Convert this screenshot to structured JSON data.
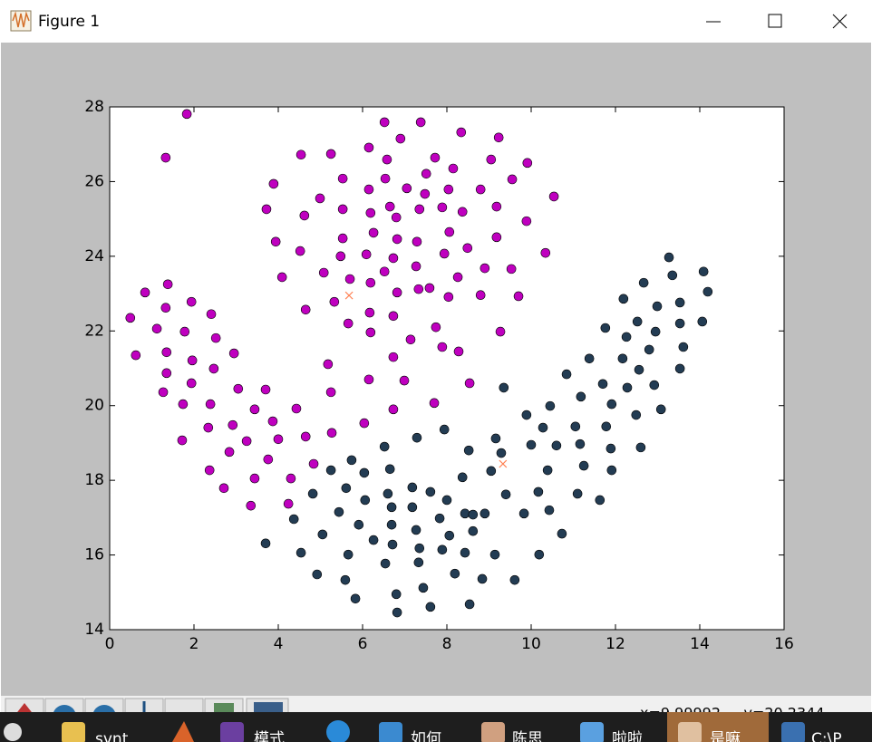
{
  "window": {
    "title": "Figure 1"
  },
  "toolbar": {
    "coordinates": "x=9.99992     y=20.2344"
  },
  "taskbar": {
    "items": [
      "svnt",
      "模式",
      "如何",
      "陈思",
      "啦啦",
      "是嘛",
      "C:\\P"
    ]
  },
  "chart_data": {
    "type": "scatter",
    "xlim": [
      0,
      16
    ],
    "ylim": [
      14,
      28
    ],
    "xticks": [
      0,
      2,
      4,
      6,
      8,
      10,
      12,
      14,
      16
    ],
    "yticks": [
      14,
      16,
      18,
      20,
      22,
      24,
      26,
      28
    ],
    "series": [
      {
        "color": "#bf00bf",
        "marker": "o",
        "x": [
          1.83,
          1.33,
          7.38,
          6.52,
          8.34,
          9.23,
          6.9,
          6.15,
          5.25,
          4.54,
          7.72,
          6.58,
          9.05,
          9.91,
          7.51,
          8.15,
          5.53,
          3.89,
          9.55,
          6.54,
          7.05,
          6.15,
          4.99,
          8.04,
          8.8,
          7.48,
          10.54,
          3.72,
          4.62,
          5.53,
          6.19,
          6.65,
          7.35,
          7.89,
          8.37,
          6.8,
          9.18,
          9.89,
          6.26,
          5.53,
          3.94,
          4.52,
          6.82,
          7.29,
          8.06,
          9.18,
          8.49,
          10.34,
          4.09,
          5.08,
          5.48,
          6.09,
          6.73,
          7.27,
          6.52,
          7.94,
          8.9,
          9.53,
          5.7,
          6.19,
          8.26,
          6.82,
          5.33,
          7.33,
          7.59,
          8.04,
          8.8,
          9.7,
          4.65,
          6.17,
          6.73,
          5.66,
          7.74,
          6.19,
          7.14,
          7.89,
          8.28,
          9.27,
          5.18,
          6.73,
          6.99,
          6.15,
          5.25,
          7.7,
          6.73,
          6.04,
          5.27,
          8.54,
          0.49,
          0.62,
          0.84,
          1.38,
          1.33,
          1.94,
          1.12,
          1.78,
          2.41,
          2.52,
          1.35,
          1.96,
          2.95,
          1.35,
          2.47,
          1.27,
          1.94,
          1.74,
          2.39,
          3.05,
          3.7,
          3.44,
          1.72,
          2.34,
          2.92,
          3.25,
          2.84,
          2.37,
          2.71,
          3.35,
          3.44,
          3.76,
          4.0,
          3.87,
          4.43,
          4.65,
          4.84,
          4.3,
          4.24
        ],
        "y": [
          27.81,
          26.64,
          27.59,
          27.59,
          27.32,
          27.18,
          27.15,
          26.91,
          26.74,
          26.72,
          26.64,
          26.59,
          26.59,
          26.5,
          26.21,
          26.35,
          26.08,
          25.94,
          26.06,
          26.08,
          25.82,
          25.79,
          25.55,
          25.79,
          25.79,
          25.67,
          25.6,
          25.26,
          25.09,
          25.26,
          25.16,
          25.33,
          25.26,
          25.31,
          25.19,
          25.04,
          25.33,
          24.94,
          24.63,
          24.48,
          24.39,
          24.14,
          24.46,
          24.39,
          24.65,
          24.51,
          24.22,
          24.09,
          23.44,
          23.56,
          24.0,
          24.05,
          23.95,
          23.73,
          23.59,
          24.07,
          23.68,
          23.66,
          23.39,
          23.29,
          23.44,
          23.03,
          22.78,
          23.12,
          23.15,
          22.91,
          22.96,
          22.93,
          22.57,
          22.49,
          22.4,
          22.2,
          22.1,
          21.96,
          21.77,
          21.57,
          21.45,
          21.98,
          21.11,
          21.3,
          20.67,
          20.7,
          20.36,
          20.07,
          19.9,
          19.53,
          19.27,
          20.6,
          22.35,
          21.35,
          23.03,
          23.25,
          22.62,
          22.78,
          22.06,
          21.98,
          22.45,
          21.81,
          21.43,
          21.21,
          21.4,
          20.87,
          20.99,
          20.36,
          20.6,
          20.04,
          20.04,
          20.45,
          20.43,
          19.9,
          19.07,
          19.41,
          19.48,
          19.05,
          18.76,
          18.27,
          17.79,
          17.32,
          18.05,
          18.56,
          19.1,
          19.58,
          19.92,
          19.17,
          18.44,
          18.05,
          17.37
        ]
      },
      {
        "color": "#233c53",
        "marker": "o",
        "x": [
          13.27,
          14.09,
          13.35,
          14.19,
          12.67,
          12.19,
          13.53,
          12.99,
          12.52,
          11.76,
          13.53,
          14.06,
          12.26,
          12.95,
          13.61,
          12.8,
          12.17,
          11.38,
          12.56,
          13.53,
          10.84,
          9.35,
          11.18,
          12.28,
          11.7,
          12.92,
          11.91,
          13.08,
          12.49,
          9.89,
          10.45,
          10.28,
          11.05,
          11.78,
          10.6,
          10.0,
          11.89,
          11.16,
          12.6,
          11.91,
          11.25,
          10.39,
          11.1,
          10.17,
          9.83,
          11.63,
          10.43,
          10.73,
          9.4,
          9.16,
          9.29,
          9.05,
          8.37,
          8.52,
          7.94,
          7.29,
          6.52,
          5.74,
          5.25,
          4.82,
          6.65,
          6.04,
          5.61,
          5.44,
          6.06,
          6.6,
          7.18,
          7.61,
          8.0,
          8.43,
          7.18,
          7.83,
          8.62,
          8.9,
          6.69,
          5.91,
          6.69,
          7.27,
          8.06,
          8.62,
          6.26,
          5.05,
          4.37,
          3.7,
          4.54,
          5.66,
          6.71,
          7.35,
          7.89,
          8.43,
          9.14,
          10.19,
          6.54,
          7.33,
          4.92,
          5.59,
          6.8,
          7.44,
          8.19,
          8.84,
          9.61,
          5.83,
          7.61,
          8.54,
          6.82
        ],
        "y": [
          23.97,
          23.59,
          23.49,
          23.05,
          23.29,
          22.86,
          22.76,
          22.66,
          22.25,
          22.08,
          22.2,
          22.25,
          21.84,
          21.98,
          21.57,
          21.5,
          21.26,
          21.26,
          20.96,
          20.99,
          20.84,
          20.48,
          20.24,
          20.48,
          20.58,
          20.55,
          20.04,
          19.9,
          19.75,
          19.75,
          19.99,
          19.41,
          19.44,
          19.44,
          18.93,
          18.95,
          18.85,
          18.97,
          18.88,
          18.27,
          18.39,
          18.27,
          17.64,
          17.69,
          17.11,
          17.47,
          17.2,
          16.57,
          17.62,
          19.12,
          18.73,
          18.25,
          18.08,
          18.8,
          19.36,
          19.14,
          18.9,
          18.54,
          18.27,
          17.64,
          18.3,
          18.2,
          17.79,
          17.15,
          17.47,
          17.64,
          17.81,
          17.69,
          17.47,
          17.11,
          17.28,
          16.98,
          17.08,
          17.11,
          17.28,
          16.81,
          16.81,
          16.67,
          16.52,
          16.64,
          16.4,
          16.55,
          16.96,
          16.31,
          16.06,
          16.01,
          16.28,
          16.18,
          16.14,
          16.06,
          16.01,
          16.01,
          15.77,
          15.8,
          15.48,
          15.33,
          14.95,
          15.12,
          15.5,
          15.36,
          15.33,
          14.83,
          14.61,
          14.68,
          14.46
        ]
      },
      {
        "color": "#ff7f50",
        "marker": "x",
        "x": [
          5.68,
          9.33
        ],
        "y": [
          22.95,
          18.44
        ]
      }
    ]
  }
}
